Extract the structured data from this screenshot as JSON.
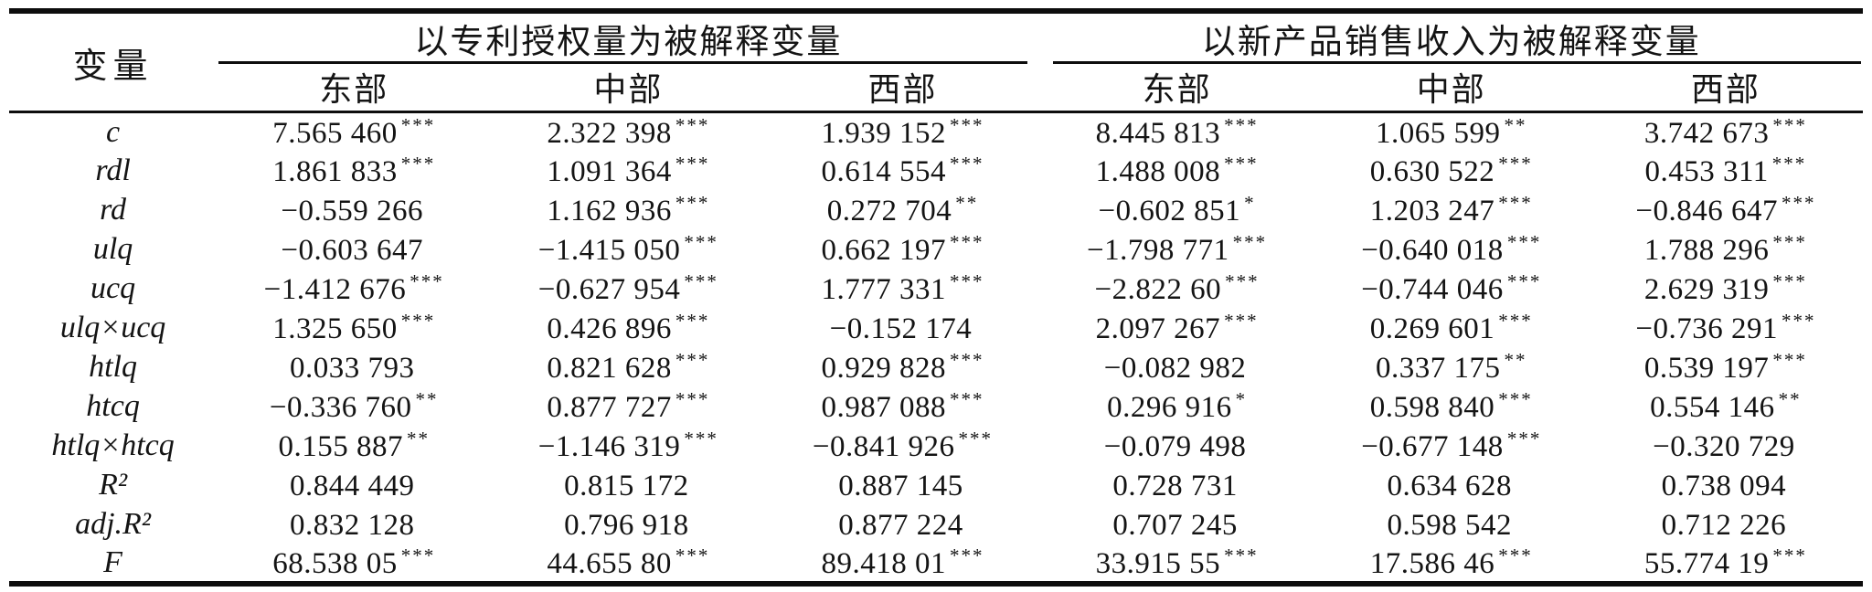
{
  "table": {
    "corner_header": "变量",
    "groups": [
      {
        "title": "以专利授权量为被解释变量",
        "columns": [
          "东部",
          "中部",
          "西部"
        ]
      },
      {
        "title": "以新产品销售收入为被解释变量",
        "columns": [
          "东部",
          "中部",
          "西部"
        ]
      }
    ],
    "rows": [
      {
        "label": "c",
        "cells": [
          {
            "v": "7.565 460",
            "sig": "***"
          },
          {
            "v": "2.322 398",
            "sig": "***"
          },
          {
            "v": "1.939 152",
            "sig": "***"
          },
          {
            "v": "8.445 813",
            "sig": "***"
          },
          {
            "v": "1.065 599",
            "sig": "**"
          },
          {
            "v": "3.742 673",
            "sig": "***"
          }
        ]
      },
      {
        "label": "rdl",
        "cells": [
          {
            "v": "1.861 833",
            "sig": "***"
          },
          {
            "v": "1.091 364",
            "sig": "***"
          },
          {
            "v": "0.614 554",
            "sig": "***"
          },
          {
            "v": "1.488 008",
            "sig": "***"
          },
          {
            "v": "0.630 522",
            "sig": "***"
          },
          {
            "v": "0.453 311",
            "sig": "***"
          }
        ]
      },
      {
        "label": "rd",
        "cells": [
          {
            "v": "−0.559 266",
            "sig": ""
          },
          {
            "v": "1.162 936",
            "sig": "***"
          },
          {
            "v": "0.272 704",
            "sig": "**"
          },
          {
            "v": "−0.602 851",
            "sig": "*"
          },
          {
            "v": "1.203 247",
            "sig": "***"
          },
          {
            "v": "−0.846 647",
            "sig": "***"
          }
        ]
      },
      {
        "label": "ulq",
        "cells": [
          {
            "v": "−0.603 647",
            "sig": ""
          },
          {
            "v": "−1.415 050",
            "sig": "***"
          },
          {
            "v": "0.662 197",
            "sig": "***"
          },
          {
            "v": "−1.798 771",
            "sig": "***"
          },
          {
            "v": "−0.640 018",
            "sig": "***"
          },
          {
            "v": "1.788 296",
            "sig": "***"
          }
        ]
      },
      {
        "label": "ucq",
        "cells": [
          {
            "v": "−1.412 676",
            "sig": "***"
          },
          {
            "v": "−0.627 954",
            "sig": "***"
          },
          {
            "v": "1.777 331",
            "sig": "***"
          },
          {
            "v": "−2.822 60",
            "sig": "***"
          },
          {
            "v": "−0.744 046",
            "sig": "***"
          },
          {
            "v": "2.629 319",
            "sig": "***"
          }
        ]
      },
      {
        "label": "ulq×ucq",
        "cells": [
          {
            "v": "1.325 650",
            "sig": "***"
          },
          {
            "v": "0.426 896",
            "sig": "***"
          },
          {
            "v": "−0.152 174",
            "sig": ""
          },
          {
            "v": "2.097 267",
            "sig": "***"
          },
          {
            "v": "0.269 601",
            "sig": "***"
          },
          {
            "v": "−0.736 291",
            "sig": "***"
          }
        ]
      },
      {
        "label": "htlq",
        "cells": [
          {
            "v": "0.033 793",
            "sig": ""
          },
          {
            "v": "0.821 628",
            "sig": "***"
          },
          {
            "v": "0.929 828",
            "sig": "***"
          },
          {
            "v": "−0.082 982",
            "sig": ""
          },
          {
            "v": "0.337 175",
            "sig": "**"
          },
          {
            "v": "0.539 197",
            "sig": "***"
          }
        ]
      },
      {
        "label": "htcq",
        "cells": [
          {
            "v": "−0.336 760",
            "sig": "**"
          },
          {
            "v": "0.877 727",
            "sig": "***"
          },
          {
            "v": "0.987 088",
            "sig": "***"
          },
          {
            "v": "0.296 916",
            "sig": "*"
          },
          {
            "v": "0.598 840",
            "sig": "***"
          },
          {
            "v": "0.554 146",
            "sig": "**"
          }
        ]
      },
      {
        "label": "htlq×htcq",
        "cells": [
          {
            "v": "0.155 887",
            "sig": "**"
          },
          {
            "v": "−1.146 319",
            "sig": "***"
          },
          {
            "v": "−0.841 926",
            "sig": "***"
          },
          {
            "v": "−0.079 498",
            "sig": ""
          },
          {
            "v": "−0.677 148",
            "sig": "***"
          },
          {
            "v": "−0.320 729",
            "sig": ""
          }
        ]
      },
      {
        "label": "R²",
        "cells": [
          {
            "v": "0.844 449",
            "sig": ""
          },
          {
            "v": "0.815 172",
            "sig": ""
          },
          {
            "v": "0.887 145",
            "sig": ""
          },
          {
            "v": "0.728 731",
            "sig": ""
          },
          {
            "v": "0.634 628",
            "sig": ""
          },
          {
            "v": "0.738 094",
            "sig": ""
          }
        ]
      },
      {
        "label": "adj.R²",
        "cells": [
          {
            "v": "0.832 128",
            "sig": ""
          },
          {
            "v": "0.796 918",
            "sig": ""
          },
          {
            "v": "0.877 224",
            "sig": ""
          },
          {
            "v": "0.707 245",
            "sig": ""
          },
          {
            "v": "0.598 542",
            "sig": ""
          },
          {
            "v": "0.712 226",
            "sig": ""
          }
        ]
      },
      {
        "label": "F",
        "cells": [
          {
            "v": "68.538 05",
            "sig": "***"
          },
          {
            "v": "44.655 80",
            "sig": "***"
          },
          {
            "v": "89.418 01",
            "sig": "***"
          },
          {
            "v": "33.915 55",
            "sig": "***"
          },
          {
            "v": "17.586 46",
            "sig": "***"
          },
          {
            "v": "55.774 19",
            "sig": "***"
          }
        ]
      }
    ]
  },
  "colors": {
    "text": "#141414",
    "rule": "#0d0d0d",
    "background": "#ffffff"
  }
}
